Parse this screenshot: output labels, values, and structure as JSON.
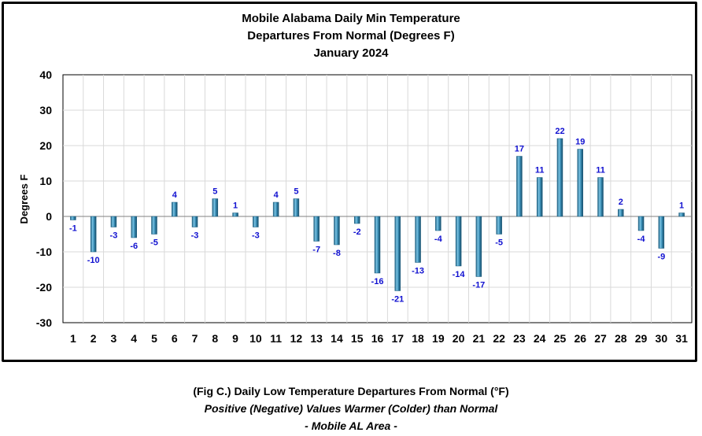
{
  "chart_data": {
    "type": "bar",
    "title_lines": [
      "Mobile Alabama Daily Min Temperature",
      "Departures From Normal (Degrees F)",
      "January 2024"
    ],
    "xlabel": "",
    "ylabel": "Degrees F",
    "ylim": [
      -30,
      40
    ],
    "yticks": [
      40,
      30,
      20,
      10,
      0,
      -10,
      -20,
      -30
    ],
    "grid": true,
    "categories": [
      "1",
      "2",
      "3",
      "4",
      "5",
      "6",
      "7",
      "8",
      "9",
      "10",
      "11",
      "12",
      "13",
      "14",
      "15",
      "16",
      "17",
      "18",
      "19",
      "20",
      "21",
      "22",
      "23",
      "24",
      "25",
      "26",
      "27",
      "28",
      "29",
      "30",
      "31"
    ],
    "values": [
      -1,
      -10,
      -3,
      -6,
      -5,
      4,
      -3,
      5,
      1,
      -3,
      4,
      5,
      -7,
      -8,
      -2,
      -16,
      -21,
      -13,
      -4,
      -14,
      -17,
      -5,
      17,
      11,
      22,
      19,
      11,
      2,
      -4,
      -9,
      1
    ],
    "bar_color": "#3a8fb7",
    "label_color": "#1010d0"
  },
  "caption": {
    "line1": "(Fig C.) Daily Low Temperature Departures From Normal (°F)",
    "line2": "Positive (Negative) Values Warmer (Colder) than Normal",
    "line3": "- Mobile AL Area -"
  }
}
